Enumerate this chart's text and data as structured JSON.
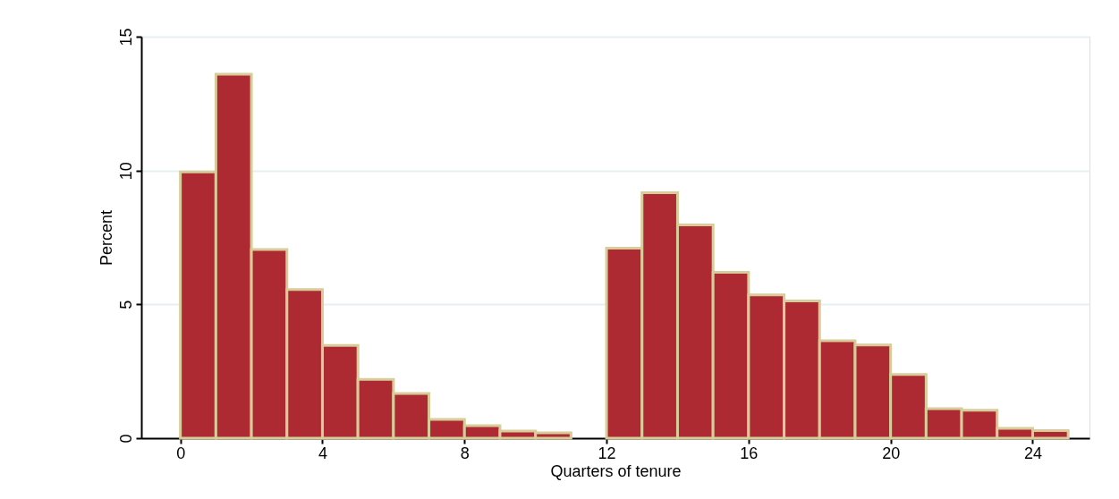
{
  "chart_data": {
    "type": "histogram",
    "xlabel": "Quarters of tenure",
    "ylabel": "Percent",
    "bins": [
      0,
      1,
      2,
      3,
      4,
      5,
      6,
      7,
      8,
      9,
      10,
      11,
      12,
      13,
      14,
      15,
      16,
      17,
      18,
      19,
      20,
      21,
      22,
      23,
      24,
      25
    ],
    "values": [
      9.95,
      13.6,
      7.05,
      5.55,
      3.47,
      2.2,
      1.67,
      0.7,
      0.47,
      0.27,
      0.2,
      0,
      7.1,
      9.17,
      7.97,
      6.2,
      5.35,
      5.13,
      3.64,
      3.48,
      2.38,
      1.1,
      1.04,
      0.37,
      0.28
    ],
    "color": "#ae2a32",
    "xlim": [
      -1.1,
      25.6
    ],
    "xticks": [
      0,
      4,
      8,
      12,
      16,
      20,
      24
    ],
    "ylim": [
      0,
      15
    ],
    "yticks": [
      0,
      5,
      10,
      15
    ],
    "grid": "y"
  }
}
